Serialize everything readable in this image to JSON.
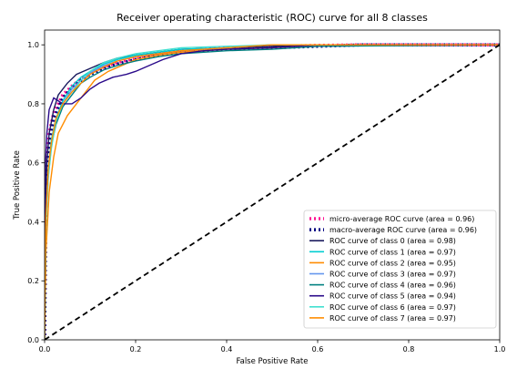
{
  "chart_data": {
    "type": "line",
    "title": "Receiver operating characteristic (ROC) curve for all 8 classes",
    "xlabel": "False Positive Rate",
    "ylabel": "True Positive Rate",
    "xlim": [
      0.0,
      1.0
    ],
    "ylim": [
      0.0,
      1.05
    ],
    "xticks": [
      "0.0",
      "0.2",
      "0.4",
      "0.6",
      "0.8",
      "1.0"
    ],
    "yticks": [
      "0.0",
      "0.2",
      "0.4",
      "0.6",
      "0.8",
      "1.0"
    ],
    "grid": false,
    "legend_position": "lower-right",
    "series": [
      {
        "name": "micro-average ROC curve (area = 0.96)",
        "color": "#ff1493",
        "style": "dotted",
        "x": [
          0,
          0.003,
          0.01,
          0.02,
          0.04,
          0.06,
          0.08,
          0.1,
          0.13,
          0.16,
          0.2,
          0.25,
          0.3,
          0.4,
          0.5,
          0.6,
          0.7,
          1.0
        ],
        "y": [
          0,
          0.55,
          0.7,
          0.77,
          0.83,
          0.86,
          0.885,
          0.905,
          0.925,
          0.94,
          0.955,
          0.97,
          0.98,
          0.99,
          0.995,
          0.998,
          1.0,
          1.0
        ]
      },
      {
        "name": "macro-average ROC curve (area = 0.96)",
        "color": "#000080",
        "style": "dotted",
        "x": [
          0,
          0.003,
          0.01,
          0.02,
          0.04,
          0.06,
          0.08,
          0.1,
          0.13,
          0.16,
          0.2,
          0.25,
          0.3,
          0.4,
          0.5,
          0.6,
          0.7,
          1.0
        ],
        "y": [
          0,
          0.5,
          0.66,
          0.75,
          0.82,
          0.855,
          0.88,
          0.9,
          0.92,
          0.935,
          0.95,
          0.965,
          0.975,
          0.985,
          0.99,
          0.995,
          1.0,
          1.0
        ]
      },
      {
        "name": "ROC curve of class 0 (area = 0.98)",
        "color": "#1a1a5e",
        "style": "solid",
        "x": [
          0,
          0.002,
          0.005,
          0.01,
          0.02,
          0.03,
          0.05,
          0.07,
          0.1,
          0.13,
          0.16,
          0.2,
          0.25,
          0.3,
          0.4,
          0.5,
          0.6,
          1.0
        ],
        "y": [
          0,
          0.45,
          0.6,
          0.7,
          0.78,
          0.83,
          0.87,
          0.9,
          0.92,
          0.94,
          0.955,
          0.965,
          0.975,
          0.985,
          0.99,
          0.995,
          1.0,
          1.0
        ]
      },
      {
        "name": "ROC curve of class 1 (area = 0.97)",
        "color": "#00ced1",
        "style": "solid",
        "x": [
          0,
          0.003,
          0.008,
          0.015,
          0.025,
          0.04,
          0.06,
          0.08,
          0.1,
          0.13,
          0.16,
          0.2,
          0.25,
          0.3,
          0.4,
          0.5,
          1.0
        ],
        "y": [
          0,
          0.42,
          0.58,
          0.68,
          0.75,
          0.81,
          0.86,
          0.89,
          0.91,
          0.935,
          0.95,
          0.965,
          0.975,
          0.985,
          0.99,
          1.0,
          1.0
        ]
      },
      {
        "name": "ROC curve of class 2 (area = 0.95)",
        "color": "#ff8c00",
        "style": "solid",
        "x": [
          0,
          0.003,
          0.01,
          0.02,
          0.03,
          0.05,
          0.07,
          0.09,
          0.11,
          0.14,
          0.17,
          0.2,
          0.25,
          0.3,
          0.4,
          0.5,
          0.6,
          1.0
        ],
        "y": [
          0,
          0.3,
          0.5,
          0.62,
          0.7,
          0.76,
          0.8,
          0.84,
          0.88,
          0.91,
          0.93,
          0.95,
          0.965,
          0.975,
          0.985,
          0.99,
          1.0,
          1.0
        ]
      },
      {
        "name": "ROC curve of class 3 (area = 0.97)",
        "color": "#6495ed",
        "style": "solid",
        "x": [
          0,
          0.003,
          0.008,
          0.015,
          0.025,
          0.04,
          0.06,
          0.08,
          0.1,
          0.13,
          0.16,
          0.2,
          0.25,
          0.3,
          0.4,
          0.5,
          1.0
        ],
        "y": [
          0,
          0.4,
          0.55,
          0.66,
          0.74,
          0.8,
          0.85,
          0.88,
          0.905,
          0.93,
          0.945,
          0.96,
          0.97,
          0.98,
          0.99,
          1.0,
          1.0
        ]
      },
      {
        "name": "ROC curve of class 4 (area = 0.96)",
        "color": "#008080",
        "style": "solid",
        "x": [
          0,
          0.003,
          0.008,
          0.015,
          0.025,
          0.04,
          0.06,
          0.08,
          0.1,
          0.13,
          0.16,
          0.2,
          0.25,
          0.3,
          0.4,
          0.5,
          0.6,
          1.0
        ],
        "y": [
          0,
          0.4,
          0.56,
          0.66,
          0.73,
          0.79,
          0.83,
          0.87,
          0.89,
          0.915,
          0.93,
          0.945,
          0.96,
          0.97,
          0.98,
          0.985,
          0.995,
          1.0
        ]
      },
      {
        "name": "ROC curve of class 5 (area = 0.94)",
        "color": "#2a0a8a",
        "style": "solid",
        "x": [
          0,
          0.002,
          0.005,
          0.01,
          0.02,
          0.04,
          0.06,
          0.08,
          0.1,
          0.12,
          0.15,
          0.18,
          0.2,
          0.23,
          0.26,
          0.3,
          0.35,
          0.4,
          0.5,
          0.6,
          1.0
        ],
        "y": [
          0,
          0.6,
          0.7,
          0.78,
          0.82,
          0.8,
          0.8,
          0.82,
          0.85,
          0.87,
          0.89,
          0.9,
          0.91,
          0.93,
          0.95,
          0.97,
          0.98,
          0.985,
          0.99,
          1.0,
          1.0
        ]
      },
      {
        "name": "ROC curve of class 6 (area = 0.97)",
        "color": "#40e0d0",
        "style": "solid",
        "x": [
          0,
          0.003,
          0.008,
          0.015,
          0.025,
          0.04,
          0.06,
          0.08,
          0.1,
          0.13,
          0.16,
          0.2,
          0.25,
          0.3,
          0.4,
          0.5,
          1.0
        ],
        "y": [
          0,
          0.38,
          0.55,
          0.65,
          0.74,
          0.8,
          0.84,
          0.88,
          0.91,
          0.94,
          0.955,
          0.97,
          0.98,
          0.99,
          0.995,
          1.0,
          1.0
        ]
      },
      {
        "name": "ROC curve of class 7 (area = 0.97)",
        "color": "#ff8c00",
        "style": "solid",
        "x": [
          0,
          0.003,
          0.008,
          0.015,
          0.025,
          0.04,
          0.06,
          0.08,
          0.1,
          0.13,
          0.16,
          0.2,
          0.25,
          0.3,
          0.4,
          0.5,
          1.0
        ],
        "y": [
          0,
          0.42,
          0.58,
          0.67,
          0.75,
          0.8,
          0.84,
          0.87,
          0.9,
          0.925,
          0.945,
          0.96,
          0.97,
          0.98,
          0.99,
          1.0,
          1.0
        ]
      },
      {
        "color": "#000000",
        "style": "dashed",
        "x": [
          0,
          1
        ],
        "y": [
          0,
          1
        ]
      }
    ]
  }
}
